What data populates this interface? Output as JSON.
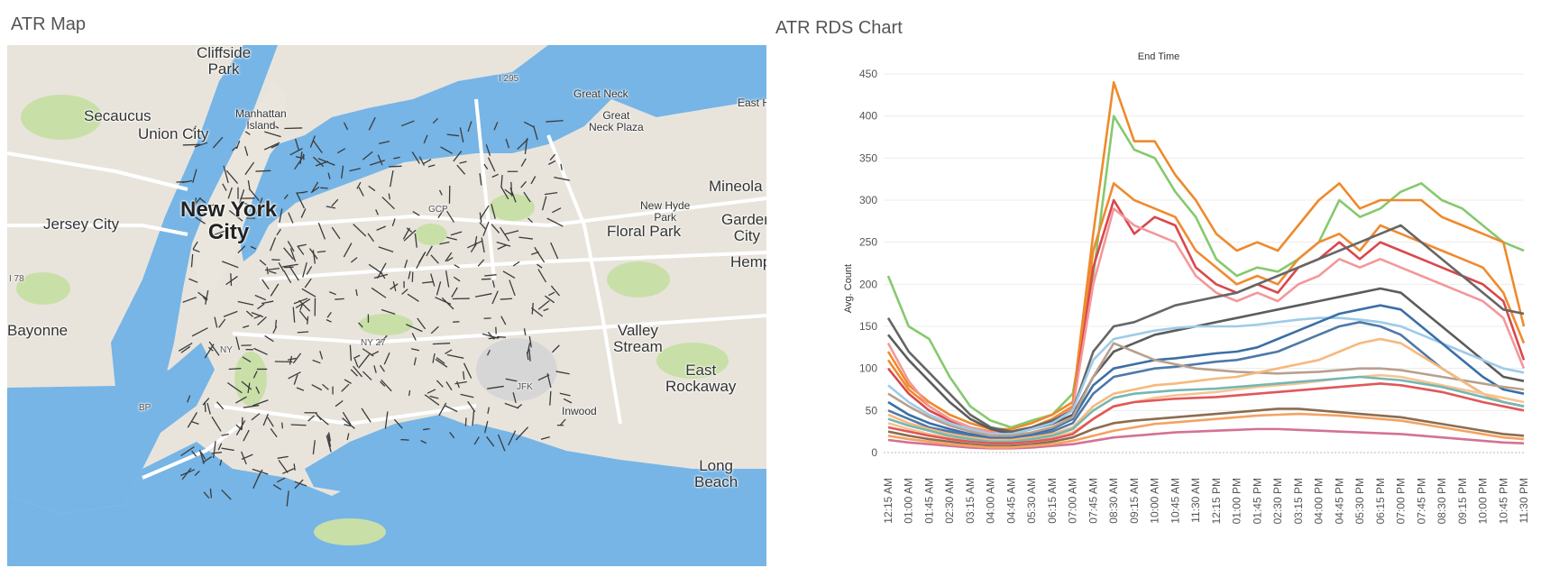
{
  "map": {
    "title": "ATR Map",
    "labels": [
      {
        "id": "cliffside-park",
        "text": "Cliffside\nPark",
        "size": "ml-l"
      },
      {
        "id": "secaucus",
        "text": "Secaucus",
        "size": "ml-l"
      },
      {
        "id": "union-city",
        "text": "Union City",
        "size": "ml-l"
      },
      {
        "id": "manhattan-island",
        "text": "Manhattan\nIsland",
        "size": "ml-s"
      },
      {
        "id": "new-york-city",
        "text": "New York\nCity",
        "size": "ml-xl"
      },
      {
        "id": "jersey-city",
        "text": "Jersey City",
        "size": "ml-l"
      },
      {
        "id": "bayonne",
        "text": "Bayonne",
        "size": "ml-l"
      },
      {
        "id": "great-neck",
        "text": "Great Neck",
        "size": "ml-s"
      },
      {
        "id": "great-neck-plaza",
        "text": "Great\nNeck Plaza",
        "size": "ml-s"
      },
      {
        "id": "east-hills",
        "text": "East Hi",
        "size": "ml-s"
      },
      {
        "id": "mineola",
        "text": "Mineola",
        "size": "ml-l"
      },
      {
        "id": "new-hyde-park",
        "text": "New Hyde\nPark",
        "size": "ml-s"
      },
      {
        "id": "garden-city",
        "text": "Garden\nCity",
        "size": "ml-l"
      },
      {
        "id": "floral-park",
        "text": "Floral Park",
        "size": "ml-l"
      },
      {
        "id": "hempstead",
        "text": "Hemps",
        "size": "ml-l"
      },
      {
        "id": "valley-stream",
        "text": "Valley\nStream",
        "size": "ml-l"
      },
      {
        "id": "east-rockaway",
        "text": "East\nRockaway",
        "size": "ml-l"
      },
      {
        "id": "jfk",
        "text": "JFK",
        "size": "ml-xs"
      },
      {
        "id": "inwood",
        "text": "Inwood",
        "size": "ml-s"
      },
      {
        "id": "long-beach",
        "text": "Long\nBeach",
        "size": "ml-l"
      },
      {
        "id": "i295",
        "text": "I 295",
        "size": "ml-xs"
      },
      {
        "id": "i78",
        "text": "I 78",
        "size": "ml-xs"
      },
      {
        "id": "ny27",
        "text": "NY 27",
        "size": "ml-xs"
      },
      {
        "id": "gcp",
        "text": "GCP",
        "size": "ml-xs"
      },
      {
        "id": "bp",
        "text": "BP",
        "size": "ml-xs"
      },
      {
        "id": "ny-small",
        "text": "NY",
        "size": "ml-xs"
      }
    ]
  },
  "chart": {
    "title": "ATR RDS Chart"
  },
  "colors": {
    "water": "#76b5e6",
    "land": "#e8e4dc",
    "park": "#c9dfa8",
    "roads": "#ffffff",
    "sensors": "#3b3b3b"
  },
  "chart_data": {
    "type": "line",
    "title": "End Time",
    "xlabel": "",
    "ylabel": "Avg. Count",
    "ylim": [
      0,
      450
    ],
    "yticks": [
      0,
      50,
      100,
      150,
      200,
      250,
      300,
      350,
      400,
      450
    ],
    "x_tick_labels": [
      "12:15 AM",
      "01:00 AM",
      "01:45 AM",
      "02:30 AM",
      "03:15 AM",
      "04:00 AM",
      "04:45 AM",
      "05:30 AM",
      "06:15 AM",
      "07:00 AM",
      "07:45 AM",
      "08:30 AM",
      "09:15 AM",
      "10:00 AM",
      "10:45 AM",
      "11:30 AM",
      "12:15 PM",
      "01:00 PM",
      "01:45 PM",
      "02:30 PM",
      "03:15 PM",
      "04:00 PM",
      "04:45 PM",
      "05:30 PM",
      "06:15 PM",
      "07:00 PM",
      "07:45 PM",
      "08:30 PM",
      "09:15 PM",
      "10:00 PM",
      "10:45 PM",
      "11:30 PM"
    ],
    "series": [
      {
        "color": "#86c96e",
        "values": [
          210,
          150,
          135,
          90,
          55,
          38,
          30,
          38,
          45,
          70,
          210,
          400,
          360,
          350,
          310,
          280,
          230,
          210,
          220,
          215,
          230,
          250,
          300,
          280,
          290,
          310,
          320,
          300,
          290,
          270,
          250,
          240
        ]
      },
      {
        "color": "#ee8a2b",
        "values": [
          120,
          80,
          60,
          45,
          35,
          28,
          28,
          35,
          45,
          60,
          260,
          440,
          370,
          370,
          330,
          300,
          260,
          240,
          250,
          240,
          270,
          300,
          320,
          290,
          300,
          300,
          300,
          280,
          270,
          260,
          250,
          150
        ]
      },
      {
        "color": "#f08a2f",
        "values": [
          110,
          75,
          55,
          40,
          30,
          25,
          25,
          30,
          40,
          55,
          240,
          320,
          300,
          290,
          280,
          240,
          220,
          200,
          210,
          200,
          230,
          250,
          260,
          240,
          270,
          260,
          250,
          240,
          230,
          220,
          190,
          130
        ]
      },
      {
        "color": "#d9474d",
        "values": [
          100,
          70,
          50,
          38,
          28,
          22,
          22,
          28,
          36,
          50,
          220,
          300,
          260,
          280,
          270,
          220,
          200,
          190,
          200,
          190,
          220,
          230,
          250,
          230,
          250,
          240,
          230,
          220,
          210,
          200,
          180,
          110
        ]
      },
      {
        "color": "#f3989a",
        "values": [
          130,
          85,
          55,
          40,
          30,
          24,
          24,
          30,
          38,
          52,
          200,
          290,
          270,
          260,
          250,
          210,
          190,
          180,
          190,
          180,
          200,
          210,
          230,
          220,
          230,
          220,
          210,
          200,
          190,
          180,
          160,
          100
        ]
      },
      {
        "color": "#666666",
        "values": [
          160,
          120,
          95,
          70,
          45,
          30,
          25,
          30,
          38,
          50,
          120,
          150,
          155,
          165,
          175,
          180,
          185,
          190,
          200,
          210,
          220,
          230,
          240,
          250,
          260,
          270,
          250,
          230,
          210,
          190,
          170,
          165
        ]
      },
      {
        "color": "#5c5c5c",
        "values": [
          140,
          110,
          85,
          60,
          40,
          28,
          22,
          28,
          34,
          45,
          90,
          120,
          130,
          140,
          145,
          150,
          155,
          160,
          165,
          170,
          175,
          180,
          185,
          190,
          195,
          190,
          170,
          150,
          130,
          110,
          90,
          85
        ]
      },
      {
        "color": "#9ecbe9",
        "values": [
          80,
          60,
          45,
          35,
          28,
          22,
          22,
          28,
          35,
          50,
          110,
          135,
          140,
          145,
          148,
          150,
          150,
          150,
          152,
          155,
          158,
          160,
          160,
          158,
          155,
          150,
          140,
          130,
          120,
          110,
          100,
          95
        ]
      },
      {
        "color": "#3b6fa5",
        "values": [
          60,
          45,
          35,
          28,
          22,
          18,
          18,
          22,
          28,
          40,
          80,
          100,
          105,
          110,
          112,
          115,
          118,
          120,
          125,
          135,
          145,
          155,
          165,
          170,
          175,
          170,
          150,
          130,
          110,
          90,
          75,
          70
        ]
      },
      {
        "color": "#4e79a7",
        "values": [
          50,
          40,
          30,
          25,
          20,
          16,
          16,
          20,
          25,
          35,
          70,
          90,
          95,
          100,
          102,
          105,
          108,
          110,
          115,
          120,
          130,
          140,
          150,
          155,
          150,
          140,
          120,
          100,
          85,
          70,
          60,
          55
        ]
      },
      {
        "color": "#b8a08e",
        "values": [
          70,
          55,
          42,
          32,
          25,
          20,
          20,
          24,
          30,
          42,
          90,
          130,
          120,
          110,
          105,
          100,
          98,
          96,
          95,
          94,
          95,
          96,
          98,
          100,
          100,
          98,
          94,
          90,
          86,
          82,
          78,
          75
        ]
      },
      {
        "color": "#f6b97d",
        "values": [
          45,
          35,
          28,
          22,
          18,
          15,
          15,
          18,
          22,
          30,
          55,
          70,
          75,
          80,
          82,
          85,
          88,
          90,
          95,
          100,
          105,
          110,
          120,
          130,
          135,
          130,
          115,
          100,
          85,
          70,
          60,
          55
        ]
      },
      {
        "color": "#f5c494",
        "values": [
          35,
          28,
          22,
          18,
          14,
          12,
          12,
          14,
          18,
          24,
          40,
          55,
          60,
          65,
          68,
          70,
          72,
          75,
          78,
          80,
          82,
          85,
          88,
          90,
          92,
          90,
          85,
          80,
          75,
          70,
          65,
          60
        ]
      },
      {
        "color": "#76b7b2",
        "values": [
          40,
          32,
          26,
          20,
          16,
          13,
          13,
          16,
          20,
          28,
          50,
          65,
          70,
          72,
          74,
          75,
          76,
          78,
          80,
          82,
          84,
          86,
          88,
          90,
          88,
          86,
          82,
          78,
          72,
          66,
          60,
          55
        ]
      },
      {
        "color": "#e15759",
        "values": [
          30,
          25,
          20,
          16,
          13,
          11,
          11,
          13,
          16,
          22,
          40,
          55,
          60,
          62,
          64,
          65,
          66,
          68,
          70,
          72,
          74,
          76,
          78,
          80,
          82,
          80,
          76,
          72,
          66,
          60,
          55,
          50
        ]
      },
      {
        "color": "#8c6d4f",
        "values": [
          25,
          20,
          16,
          13,
          10,
          8,
          8,
          10,
          13,
          18,
          28,
          35,
          38,
          40,
          42,
          44,
          46,
          48,
          50,
          52,
          52,
          50,
          48,
          46,
          44,
          42,
          38,
          34,
          30,
          26,
          22,
          20
        ]
      },
      {
        "color": "#d37295",
        "values": [
          15,
          12,
          10,
          8,
          6,
          5,
          5,
          6,
          8,
          10,
          14,
          18,
          20,
          22,
          24,
          25,
          26,
          27,
          28,
          28,
          27,
          26,
          25,
          24,
          23,
          22,
          20,
          18,
          16,
          14,
          12,
          11
        ]
      },
      {
        "color": "#f4a261",
        "values": [
          20,
          16,
          13,
          10,
          8,
          6,
          6,
          8,
          10,
          14,
          20,
          26,
          30,
          34,
          36,
          38,
          40,
          42,
          44,
          45,
          46,
          45,
          44,
          42,
          40,
          38,
          34,
          30,
          26,
          22,
          18,
          16
        ]
      }
    ]
  }
}
